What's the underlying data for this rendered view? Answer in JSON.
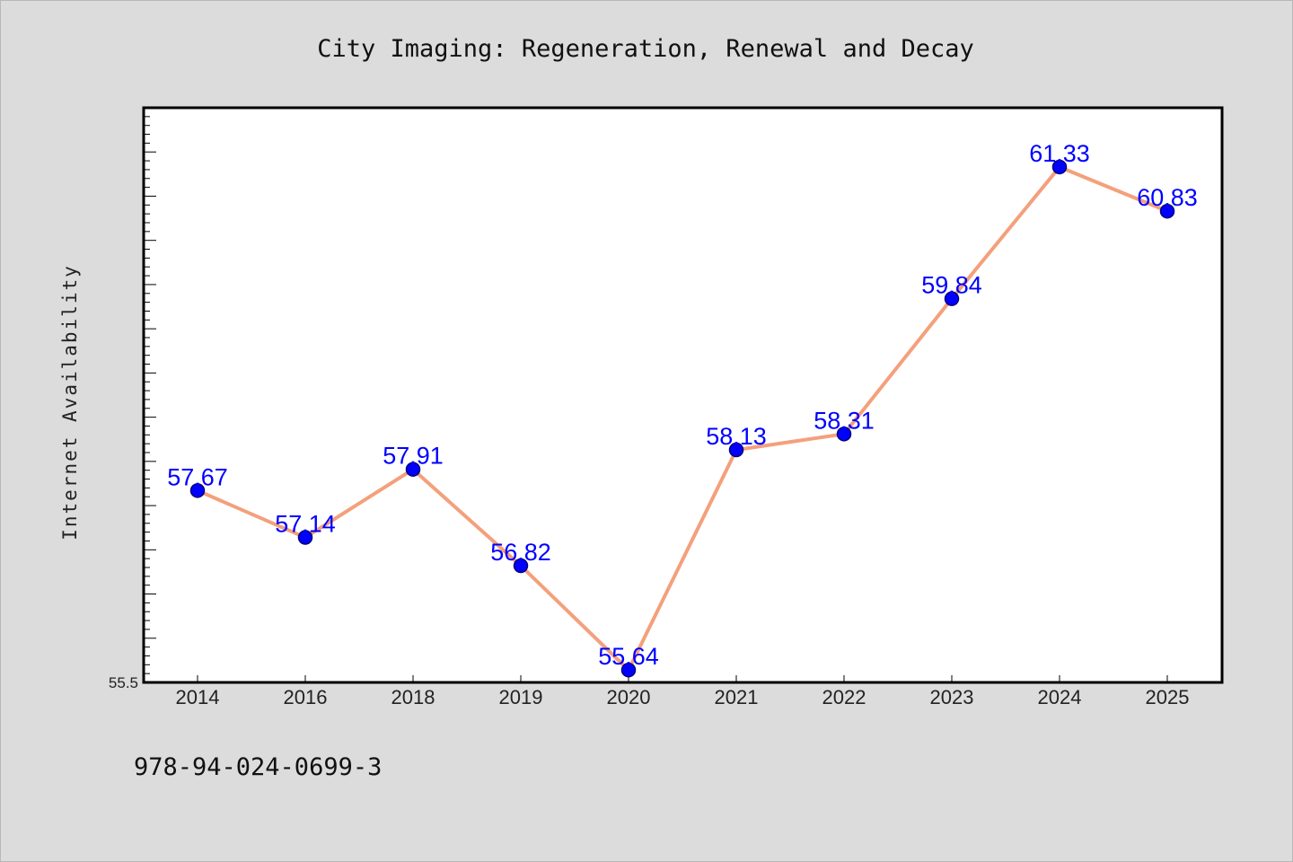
{
  "page": {
    "background": "#dcdcdc"
  },
  "footer": {
    "isbn": "978-94-024-0699-3"
  },
  "chart_data": {
    "type": "line",
    "title": "City Imaging: Regeneration, Renewal and Decay",
    "xlabel": "",
    "ylabel": "Internet Availability",
    "categories": [
      "2014",
      "2016",
      "2018",
      "2019",
      "2020",
      "2021",
      "2022",
      "2023",
      "2024",
      "2025"
    ],
    "series": [
      {
        "values": [
          57.67,
          57.14,
          57.91,
          56.82,
          55.64,
          58.13,
          58.31,
          59.84,
          61.33,
          60.83
        ],
        "labels": [
          "57.67",
          "57.14",
          "57.91",
          "56.82",
          "55.64",
          "58.13",
          "58.31",
          "59.84",
          "61.33",
          "60.83"
        ],
        "line_color": "#f4a07c",
        "marker_color": "#0000ff"
      }
    ],
    "ylim": [
      55.5,
      62.0
    ],
    "y_tick_labels": [
      {
        "value": 55.5,
        "label": "55.5"
      }
    ],
    "grid": false,
    "legend": "none"
  }
}
